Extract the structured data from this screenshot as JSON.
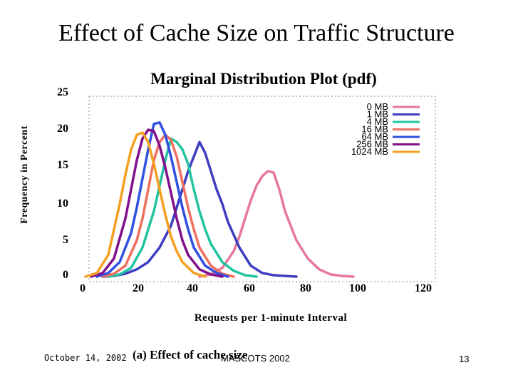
{
  "slide_title": "Effect of Cache Size on Traffic Structure",
  "footer": {
    "date": "October 14, 2002",
    "caption": "(a) Effect of cache size",
    "conference": "MASCOTS 2002",
    "page": "13"
  },
  "chart_data": {
    "type": "line",
    "title": "Marginal Distribution Plot (pdf)",
    "xlabel": "Requests per 1-minute Interval",
    "ylabel": "Frequency in Percent",
    "xlim": [
      0,
      120
    ],
    "ylim": [
      0,
      25
    ],
    "x_ticks": [
      "0",
      "20",
      "40",
      "60",
      "80",
      "100",
      "120"
    ],
    "y_ticks": [
      "0",
      "5",
      "10",
      "15",
      "20",
      "25"
    ],
    "grid": false,
    "legend_position": "top-right",
    "series": [
      {
        "name": "0 MB",
        "color": "#e8779a",
        "x": [
          40,
          44,
          48,
          52,
          54,
          56,
          58,
          60,
          62,
          64,
          66,
          68,
          70,
          74,
          78,
          82,
          86,
          90,
          94
        ],
        "y": [
          0,
          0.3,
          1.2,
          3.5,
          5.5,
          8,
          10.5,
          12.5,
          13.8,
          14.5,
          14.3,
          12,
          9,
          5,
          2.5,
          1,
          0.3,
          0.1,
          0
        ]
      },
      {
        "name": "1 MB",
        "color": "#3d3dbf",
        "x": [
          6,
          10,
          14,
          18,
          22,
          26,
          30,
          34,
          36,
          38,
          40,
          42,
          44,
          46,
          48,
          50,
          54,
          58,
          62,
          66,
          70,
          74
        ],
        "y": [
          0,
          0.1,
          0.4,
          1,
          2,
          4,
          7,
          12,
          14.5,
          16.5,
          18.5,
          17,
          14.5,
          12,
          10,
          7.5,
          4,
          1.5,
          0.5,
          0.2,
          0.1,
          0
        ]
      },
      {
        "name": "4 MB",
        "color": "#22c4a0",
        "x": [
          8,
          12,
          16,
          20,
          24,
          26,
          28,
          30,
          32,
          34,
          36,
          38,
          40,
          42,
          44,
          48,
          52,
          56,
          60
        ],
        "y": [
          0,
          0.3,
          1.2,
          4,
          9,
          12.5,
          16,
          19,
          18.5,
          17.5,
          15.5,
          12,
          9,
          6.5,
          4.5,
          2,
          0.8,
          0.2,
          0
        ]
      },
      {
        "name": "16 MB",
        "color": "#f07060",
        "x": [
          6,
          10,
          14,
          18,
          20,
          22,
          24,
          26,
          28,
          30,
          32,
          34,
          36,
          38,
          40,
          44,
          48,
          52
        ],
        "y": [
          0,
          0.4,
          1.5,
          5,
          8,
          12,
          16,
          18.5,
          19.5,
          18.8,
          16.5,
          13,
          9.5,
          6.5,
          4,
          1.5,
          0.4,
          0
        ]
      },
      {
        "name": "64 MB",
        "color": "#3050e0",
        "x": [
          4,
          8,
          12,
          16,
          18,
          20,
          22,
          24,
          26,
          28,
          30,
          32,
          34,
          36,
          38,
          42,
          46,
          50
        ],
        "y": [
          0,
          0.5,
          2,
          6,
          9.5,
          13.5,
          17.5,
          21,
          21.2,
          19.5,
          16.5,
          13,
          9.5,
          6.5,
          4,
          1.5,
          0.5,
          0
        ]
      },
      {
        "name": "256 MB",
        "color": "#80108c",
        "x": [
          2,
          6,
          10,
          14,
          16,
          18,
          20,
          22,
          24,
          26,
          28,
          30,
          32,
          34,
          36,
          40,
          44,
          48
        ],
        "y": [
          0,
          0.5,
          2.5,
          8,
          12,
          16,
          19,
          20.2,
          20,
          18,
          15,
          11.5,
          8,
          5,
          3,
          1,
          0.3,
          0
        ]
      },
      {
        "name": "1024 MB",
        "color": "#f5a020",
        "x": [
          0,
          4,
          8,
          12,
          14,
          16,
          18,
          20,
          22,
          24,
          26,
          28,
          30,
          32,
          34,
          38,
          42
        ],
        "y": [
          0,
          0.5,
          3,
          10,
          14,
          17.5,
          19.5,
          19.8,
          18.5,
          15.5,
          12,
          8.5,
          5.5,
          3.5,
          2,
          0.5,
          0
        ]
      }
    ]
  }
}
